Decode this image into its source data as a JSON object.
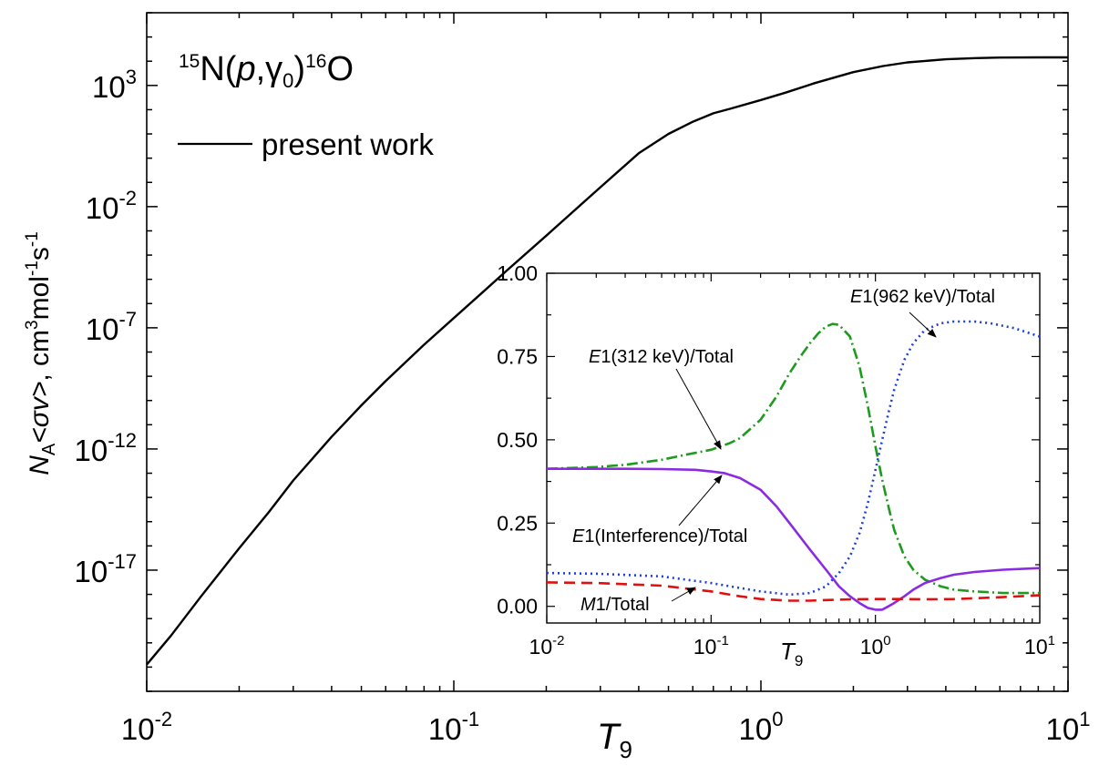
{
  "chart_data": {
    "main": {
      "type": "line",
      "title": "15N(p,γ0)16O",
      "title_parts": {
        "a_mass": "15",
        "element_a": "N(",
        "particle": "p",
        "comma": ",",
        "gamma": "γ",
        "gamma_sub": "0",
        "close": ")",
        "b_mass": "16",
        "element_b": "O"
      },
      "xlabel": {
        "base": "T",
        "sub": "9"
      },
      "ylabel": {
        "n": "N",
        "n_sub": "A",
        "sv": "<σv>",
        "units_pre": ", cm",
        "exp3": "3",
        "mol": "mol",
        "expm1a": "-1",
        "s": "s",
        "expm1b": "-1"
      },
      "xscale": "log",
      "yscale": "log",
      "xlim": [
        0.01,
        10
      ],
      "ylim_exponent": [
        -22,
        6
      ],
      "x_ticks": [
        {
          "value": 0.01,
          "base": "10",
          "exp": "-2"
        },
        {
          "value": 0.1,
          "base": "10",
          "exp": "-1"
        },
        {
          "value": 1,
          "base": "10",
          "exp": "0"
        },
        {
          "value": 10,
          "base": "10",
          "exp": "1"
        }
      ],
      "y_ticks": [
        {
          "exponent": 3,
          "base": "10",
          "exp": "3"
        },
        {
          "exponent": -2,
          "base": "10",
          "exp": "-2"
        },
        {
          "exponent": -7,
          "base": "10",
          "exp": "-7"
        },
        {
          "exponent": -12,
          "base": "10",
          "exp": "-12"
        },
        {
          "exponent": -17,
          "base": "10",
          "exp": "-17"
        }
      ],
      "legend": {
        "placement": "top-left",
        "label": "present work"
      },
      "series": [
        {
          "name": "present work",
          "color": "#000000",
          "x": [
            0.01,
            0.012,
            0.015,
            0.02,
            0.025,
            0.03,
            0.04,
            0.05,
            0.06,
            0.08,
            0.1,
            0.12,
            0.15,
            0.2,
            0.25,
            0.3,
            0.4,
            0.5,
            0.6,
            0.7,
            0.8,
            1.0,
            1.2,
            1.5,
            2.0,
            2.5,
            3.0,
            4.0,
            5.0,
            6.0,
            8.0,
            10.0
          ],
          "log10_y": [
            -20.9,
            -19.7,
            -18.1,
            -16.1,
            -14.6,
            -13.3,
            -11.5,
            -10.2,
            -9.2,
            -7.7,
            -6.6,
            -5.7,
            -4.6,
            -3.2,
            -2.1,
            -1.2,
            0.2,
            1.0,
            1.5,
            1.85,
            2.05,
            2.4,
            2.7,
            3.1,
            3.55,
            3.8,
            3.95,
            4.08,
            4.13,
            4.15,
            4.16,
            4.16
          ]
        }
      ]
    },
    "inset": {
      "type": "line",
      "xlabel": {
        "base": "T",
        "sub": "9"
      },
      "xscale": "log",
      "xlim": [
        0.01,
        10
      ],
      "ylim": [
        -0.05,
        1.0
      ],
      "x_ticks": [
        {
          "value": 0.01,
          "base": "10",
          "exp": "-2"
        },
        {
          "value": 0.1,
          "base": "10",
          "exp": "-1"
        },
        {
          "value": 1,
          "base": "10",
          "exp": "0"
        },
        {
          "value": 10,
          "base": "10",
          "exp": "1"
        }
      ],
      "y_ticks": [
        {
          "value": 0.0,
          "label": "0.00"
        },
        {
          "value": 0.25,
          "label": "0.25"
        },
        {
          "value": 0.5,
          "label": "0.50"
        },
        {
          "value": 0.75,
          "label": "0.75"
        },
        {
          "value": 1.0,
          "label": "1.00"
        }
      ],
      "series": [
        {
          "name": "E1(312 keV)/Total",
          "color": "#1e9a1e",
          "dash": "12 4 2 4",
          "label_parts": {
            "italic": "E",
            "rest": "1(312 keV)/Total"
          },
          "x": [
            0.01,
            0.02,
            0.03,
            0.05,
            0.07,
            0.1,
            0.13,
            0.15,
            0.2,
            0.25,
            0.3,
            0.35,
            0.4,
            0.45,
            0.5,
            0.55,
            0.6,
            0.7,
            0.8,
            0.9,
            1.0,
            1.1,
            1.2,
            1.3,
            1.5,
            1.7,
            2.0,
            2.5,
            3.0,
            4.0,
            6.0,
            10.0
          ],
          "y": [
            0.413,
            0.418,
            0.425,
            0.44,
            0.455,
            0.47,
            0.49,
            0.505,
            0.56,
            0.63,
            0.7,
            0.75,
            0.79,
            0.82,
            0.84,
            0.848,
            0.845,
            0.81,
            0.72,
            0.6,
            0.48,
            0.38,
            0.3,
            0.23,
            0.15,
            0.11,
            0.08,
            0.06,
            0.05,
            0.045,
            0.04,
            0.04
          ]
        },
        {
          "name": "E1(962 keV)/Total",
          "color": "#1f3fd6",
          "dash": "2 4",
          "label_parts": {
            "italic": "E",
            "rest": "1(962 keV)/Total"
          },
          "x": [
            0.01,
            0.02,
            0.05,
            0.1,
            0.15,
            0.2,
            0.3,
            0.4,
            0.5,
            0.6,
            0.7,
            0.8,
            0.9,
            1.0,
            1.1,
            1.2,
            1.3,
            1.5,
            1.7,
            2.0,
            2.5,
            3.0,
            4.0,
            5.0,
            7.0,
            10.0
          ],
          "y": [
            0.1,
            0.098,
            0.09,
            0.07,
            0.055,
            0.045,
            0.035,
            0.04,
            0.06,
            0.1,
            0.15,
            0.22,
            0.31,
            0.41,
            0.5,
            0.58,
            0.65,
            0.74,
            0.79,
            0.83,
            0.85,
            0.855,
            0.855,
            0.85,
            0.835,
            0.81
          ]
        },
        {
          "name": "E1(Interference)/Total",
          "color": "#8a2be2",
          "dash": "none",
          "label_parts": {
            "italic": "E",
            "rest": "1(Interference)/Total"
          },
          "x": [
            0.01,
            0.02,
            0.03,
            0.05,
            0.08,
            0.1,
            0.12,
            0.15,
            0.2,
            0.25,
            0.3,
            0.4,
            0.5,
            0.6,
            0.7,
            0.8,
            0.9,
            1.0,
            1.1,
            1.2,
            1.3,
            1.5,
            1.7,
            2.0,
            2.5,
            3.0,
            4.0,
            6.0,
            10.0
          ],
          "y": [
            0.413,
            0.413,
            0.413,
            0.412,
            0.41,
            0.405,
            0.4,
            0.385,
            0.35,
            0.3,
            0.25,
            0.17,
            0.11,
            0.06,
            0.03,
            0.01,
            -0.005,
            -0.01,
            -0.01,
            0.0,
            0.01,
            0.03,
            0.05,
            0.07,
            0.085,
            0.095,
            0.103,
            0.11,
            0.115
          ]
        },
        {
          "name": "M1/Total",
          "color": "#e01010",
          "dash": "12 7",
          "label_parts": {
            "italic": "M",
            "rest": "1/Total"
          },
          "x": [
            0.01,
            0.02,
            0.05,
            0.1,
            0.15,
            0.2,
            0.3,
            0.4,
            0.5,
            0.7,
            1.0,
            1.5,
            2.0,
            3.0,
            5.0,
            10.0
          ],
          "y": [
            0.072,
            0.07,
            0.062,
            0.045,
            0.03,
            0.022,
            0.017,
            0.017,
            0.019,
            0.021,
            0.022,
            0.022,
            0.021,
            0.022,
            0.026,
            0.033
          ]
        }
      ]
    }
  }
}
